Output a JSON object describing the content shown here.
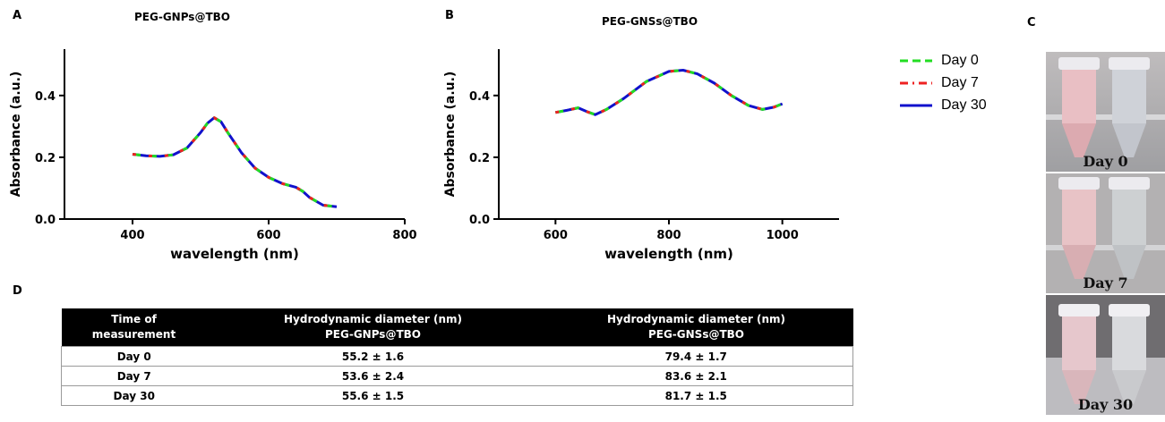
{
  "panels": {
    "a": {
      "letter": "A",
      "title": "PEG-GNPs@TBO"
    },
    "b": {
      "letter": "B",
      "title": "PEG-GNSs@TBO"
    },
    "c": {
      "letter": "C"
    },
    "d": {
      "letter": "D"
    }
  },
  "legend": [
    {
      "label": "Day 0",
      "color": "#22dd22",
      "style": "dashed"
    },
    {
      "label": "Day 7",
      "color": "#ee2222",
      "style": "dash-dot"
    },
    {
      "label": "Day 30",
      "color": "#1111cc",
      "style": "solid"
    }
  ],
  "chart_data": [
    {
      "type": "line",
      "title": "PEG-GNPs@TBO",
      "xlabel": "wavelength (nm)",
      "ylabel": "Absorbance (a.u.)",
      "xlim": [
        300,
        800
      ],
      "ylim": [
        0,
        0.55
      ],
      "xticks": [
        400,
        600,
        800
      ],
      "yticks": [
        0.0,
        0.2,
        0.4
      ],
      "ytick_labels": [
        "0.0",
        "0.2",
        "0.4"
      ],
      "x": [
        400,
        420,
        440,
        460,
        480,
        500,
        510,
        520,
        530,
        540,
        560,
        580,
        600,
        620,
        640,
        650,
        660,
        680,
        700
      ],
      "series": [
        {
          "name": "Day 0",
          "values": [
            0.21,
            0.205,
            0.203,
            0.208,
            0.23,
            0.28,
            0.31,
            0.328,
            0.315,
            0.28,
            0.215,
            0.165,
            0.135,
            0.115,
            0.103,
            0.09,
            0.07,
            0.045,
            0.04
          ]
        },
        {
          "name": "Day 7",
          "values": [
            0.21,
            0.205,
            0.203,
            0.208,
            0.23,
            0.28,
            0.31,
            0.328,
            0.315,
            0.28,
            0.215,
            0.165,
            0.135,
            0.115,
            0.103,
            0.09,
            0.07,
            0.045,
            0.04
          ]
        },
        {
          "name": "Day 30",
          "values": [
            0.21,
            0.205,
            0.203,
            0.208,
            0.23,
            0.28,
            0.31,
            0.328,
            0.315,
            0.28,
            0.215,
            0.165,
            0.135,
            0.115,
            0.103,
            0.09,
            0.07,
            0.045,
            0.04
          ]
        }
      ],
      "grid": false
    },
    {
      "type": "line",
      "title": "PEG-GNSs@TBO",
      "xlabel": "wavelength (nm)",
      "ylabel": "Absorbance (a.u.)",
      "xlim": [
        500,
        1100
      ],
      "ylim": [
        0,
        0.55
      ],
      "xticks": [
        600,
        800,
        1000
      ],
      "yticks": [
        0.0,
        0.2,
        0.4
      ],
      "ytick_labels": [
        "0.0",
        "0.2",
        "0.4"
      ],
      "x": [
        600,
        620,
        640,
        655,
        670,
        690,
        720,
        760,
        800,
        825,
        850,
        880,
        910,
        940,
        965,
        985,
        1000
      ],
      "series": [
        {
          "name": "Day 0",
          "values": [
            0.345,
            0.352,
            0.36,
            0.348,
            0.338,
            0.355,
            0.39,
            0.445,
            0.478,
            0.482,
            0.47,
            0.44,
            0.4,
            0.368,
            0.355,
            0.362,
            0.373
          ]
        },
        {
          "name": "Day 7",
          "values": [
            0.345,
            0.352,
            0.36,
            0.348,
            0.338,
            0.355,
            0.39,
            0.445,
            0.478,
            0.482,
            0.47,
            0.44,
            0.4,
            0.368,
            0.355,
            0.362,
            0.373
          ]
        },
        {
          "name": "Day 30",
          "values": [
            0.345,
            0.352,
            0.36,
            0.348,
            0.338,
            0.355,
            0.39,
            0.445,
            0.478,
            0.482,
            0.47,
            0.44,
            0.4,
            0.368,
            0.355,
            0.362,
            0.373
          ]
        }
      ],
      "grid": false
    },
    {
      "type": "table",
      "columns": [
        [
          "Time of",
          "measurement"
        ],
        [
          "Hydrodynamic  diameter (nm)",
          "PEG-GNPs@TBO"
        ],
        [
          "Hydrodynamic  diameter (nm)",
          "PEG-GNSs@TBO"
        ]
      ],
      "rows": [
        [
          "Day 0",
          "55.2 ± 1.6",
          "79.4 ± 1.7"
        ],
        [
          "Day 7",
          "53.6 ± 2.4",
          "83.6 ± 2.1"
        ],
        [
          "Day 30",
          "55.6 ± 1.5",
          "81.7 ± 1.5"
        ]
      ]
    }
  ],
  "photos": [
    {
      "caption": "Day 0"
    },
    {
      "caption": "Day 7"
    },
    {
      "caption": "Day 30"
    }
  ]
}
